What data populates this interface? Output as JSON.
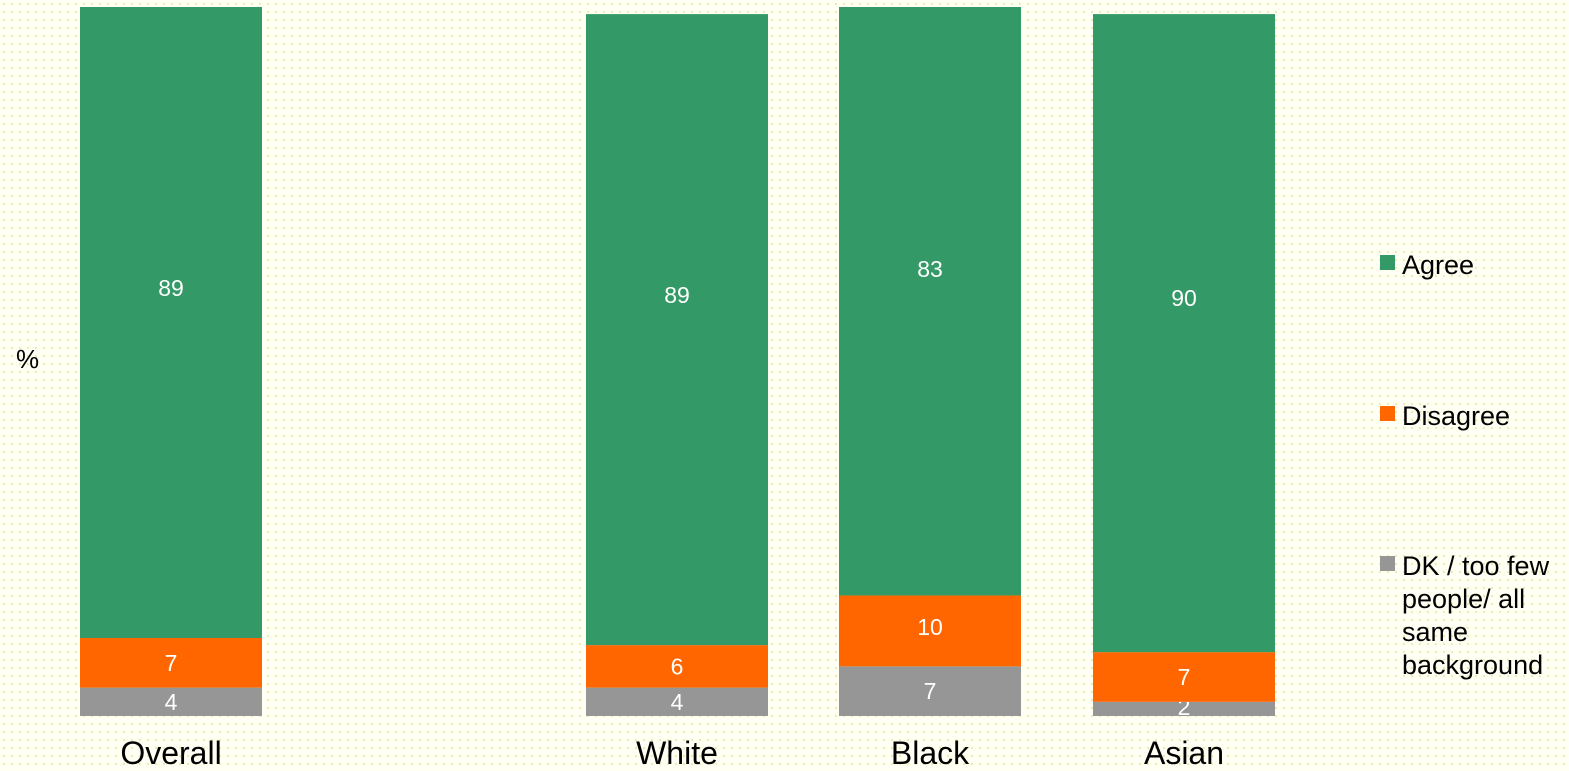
{
  "chart_data": {
    "type": "bar",
    "stacked": true,
    "orientation": "vertical",
    "y_unit_label": "%",
    "ylim": [
      0,
      100
    ],
    "grid": false,
    "legend_position": "right",
    "categories": [
      "Overall",
      "White",
      "Black",
      "Asian"
    ],
    "series": [
      {
        "name": "DK / too few people/ all same background",
        "color": "#969696",
        "values": [
          4,
          4,
          7,
          2
        ]
      },
      {
        "name": "Disagree",
        "color": "#ff6600",
        "values": [
          7,
          6,
          10,
          7
        ]
      },
      {
        "name": "Agree",
        "color": "#339966",
        "values": [
          89,
          89,
          83,
          90
        ]
      }
    ],
    "legend_order": [
      "Agree",
      "Disagree",
      "DK / too few people/ all same background"
    ],
    "legend_lines": {
      "Agree": [
        "Agree"
      ],
      "Disagree": [
        "Disagree"
      ],
      "DK / too few people/ all same background": [
        "DK / too few",
        "people/ all",
        "same",
        "background"
      ]
    }
  }
}
